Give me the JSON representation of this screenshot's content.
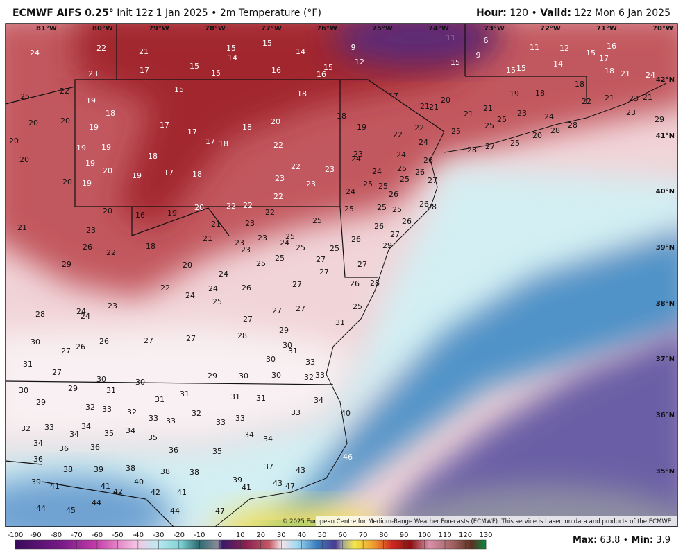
{
  "header": {
    "model": "ECMWF AIFS 0.25°",
    "init": "Init 12z 1 Jan 2025 • 2m Temperature (°F)",
    "hour_label": "Hour:",
    "hour": "120",
    "separator": "•",
    "valid_label": "Valid:",
    "valid": "12z Mon 6 Jan 2025"
  },
  "longitudes": [
    "81°W",
    "80°W",
    "79°W",
    "78°W",
    "77°W",
    "76°W",
    "75°W",
    "74°W",
    "73°W",
    "72°W",
    "71°W",
    "70°W"
  ],
  "latitudes": [
    "42°N",
    "41°N",
    "40°N",
    "39°N",
    "38°N",
    "37°N",
    "36°N",
    "35°N"
  ],
  "temperature_labels": [
    24,
    22,
    21,
    17,
    23,
    22,
    25,
    15,
    15,
    14,
    15,
    15,
    16,
    14,
    16,
    15,
    9,
    12,
    11,
    6,
    9,
    15,
    11,
    12,
    15,
    16,
    17,
    14,
    15,
    15,
    18,
    21,
    24,
    15,
    18,
    17,
    21,
    21,
    20,
    19,
    18,
    18,
    21,
    21,
    23,
    24,
    22,
    21,
    23,
    21,
    23,
    29,
    19,
    18,
    20,
    20,
    20,
    19,
    17,
    17,
    17,
    18,
    18,
    20,
    18,
    19,
    22,
    22,
    24,
    25,
    25,
    25,
    28,
    28,
    20,
    25,
    28,
    27,
    20,
    19,
    19,
    19,
    18,
    20,
    19,
    17,
    18,
    22,
    22,
    23,
    23,
    24,
    24,
    25,
    24,
    26,
    26,
    25,
    27,
    20,
    19,
    23,
    23,
    22,
    24,
    25,
    25,
    26,
    25,
    25,
    25,
    26,
    28,
    20,
    16,
    19,
    20,
    22,
    22,
    22,
    21,
    23,
    21,
    23,
    25,
    26,
    26,
    27,
    26,
    29,
    26,
    22,
    18,
    21,
    23,
    23,
    25,
    24,
    23,
    25,
    25,
    29,
    20,
    25,
    25,
    27,
    27,
    27,
    24,
    22,
    24,
    26,
    27,
    26,
    28,
    24,
    25,
    23,
    24,
    24,
    28,
    27,
    27,
    25,
    31,
    27,
    29,
    28,
    30,
    27,
    26,
    26,
    27,
    27,
    30,
    31,
    30,
    33,
    31,
    27,
    30,
    30,
    29,
    31,
    29,
    30,
    30,
    32,
    33,
    30,
    29,
    31,
    31,
    31,
    31,
    32,
    33,
    32,
    32,
    34,
    33,
    40,
    32,
    33,
    34,
    34,
    35,
    34,
    33,
    33,
    33,
    33,
    35,
    34,
    34,
    34,
    36,
    36,
    36,
    35,
    36,
    46,
    38,
    39,
    38,
    38,
    38,
    37,
    43,
    40,
    39,
    41,
    41,
    42,
    42,
    41,
    39,
    41,
    43,
    47,
    44,
    45,
    44,
    44,
    47
  ],
  "credit": "© 2025 European Centre for Medium-Range Weather Forecasts (ECMWF). This service is based on data and products of the ECMWF.",
  "colorbar": {
    "ticks": [
      -100,
      -90,
      -80,
      -70,
      -60,
      -50,
      -40,
      -30,
      -20,
      -10,
      0,
      10,
      20,
      30,
      40,
      50,
      60,
      70,
      80,
      90,
      100,
      110,
      120,
      130
    ]
  },
  "stats": {
    "max_label": "Max:",
    "max": "63.8",
    "min_label": "Min:",
    "min": "3.9"
  }
}
